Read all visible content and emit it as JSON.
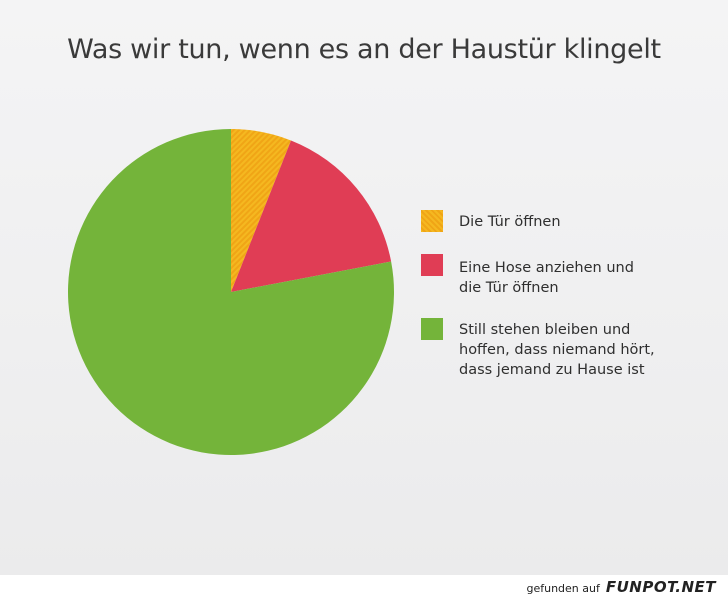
{
  "chart_data": {
    "type": "pie",
    "title": "Was wir tun, wenn es an der Haustür klingelt",
    "slices": [
      {
        "label": "Die Tür öffnen",
        "value": 6,
        "color": "#f5b820"
      },
      {
        "label": "Eine Hose anziehen und\ndie Tür öffnen",
        "value": 16,
        "color": "#e03d55"
      },
      {
        "label": "Still stehen bleiben und\nhoffen, dass niemand hört,\ndass jemand zu Hause ist",
        "value": 78,
        "color": "#74b43a"
      }
    ]
  },
  "footer": {
    "prefix": "gefunden auf",
    "brand": "FUNPOT.NET"
  }
}
